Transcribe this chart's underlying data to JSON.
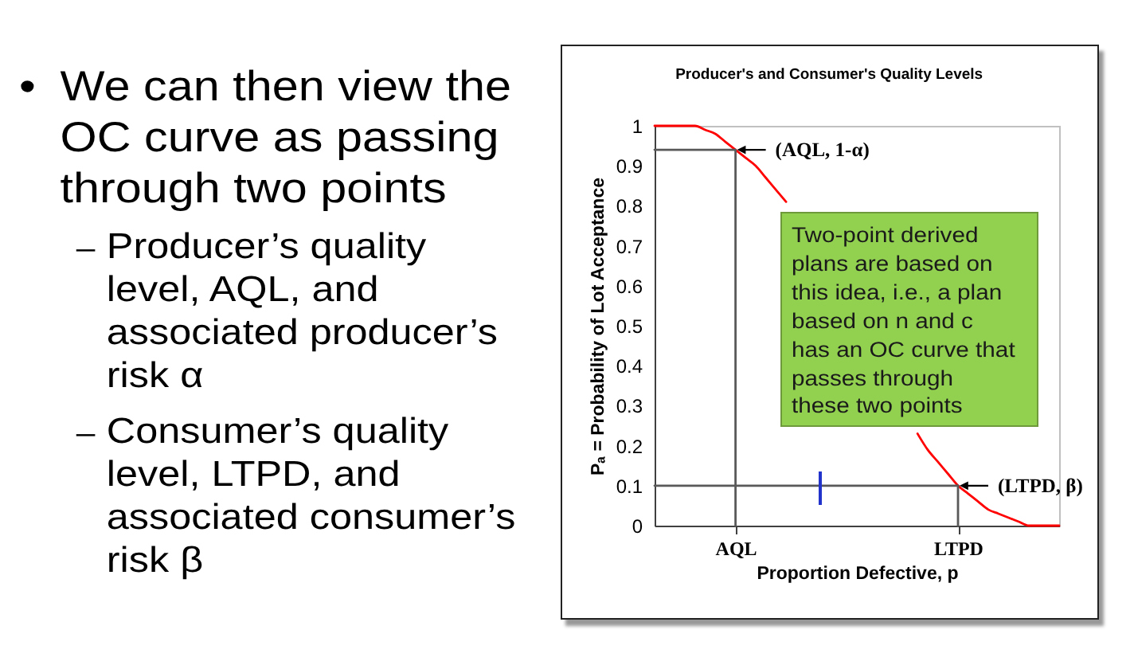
{
  "chart_data": {
    "type": "line",
    "title": "Producer's and Consumer's Quality Levels",
    "xlabel": "Proportion Defective, p",
    "ylabel": "Pₐ = Probability of Lot Acceptance",
    "categories": [
      null,
      null,
      null,
      null,
      null,
      null,
      null,
      null,
      "AQL",
      null,
      null,
      null,
      null,
      null,
      null,
      null,
      null,
      null,
      null,
      null,
      null,
      null,
      null,
      null,
      null,
      null,
      null,
      null,
      null,
      null,
      "LTPD",
      null,
      null,
      null,
      null,
      null,
      null,
      null,
      null,
      null,
      null
    ],
    "ylim": [
      0,
      1
    ],
    "yticks": [
      0,
      0.1,
      0.2,
      0.3,
      0.4,
      0.5,
      0.6,
      0.7,
      0.8,
      0.9,
      1
    ],
    "series": [
      {
        "color": "#ff0000",
        "values": [
          1,
          1,
          1,
          1,
          1,
          0.99,
          0.98,
          0.96,
          0.94,
          0.92,
          0.9,
          0.87,
          0.84,
          0.81,
          null,
          null,
          null,
          null,
          null,
          null,
          null,
          null,
          null,
          null,
          null,
          null,
          0.23,
          0.19,
          0.16,
          0.13,
          0.1,
          0.08,
          0.06,
          0.04,
          0.03,
          0.02,
          0.01,
          0,
          0,
          0,
          0
        ]
      },
      {
        "color": "#595959",
        "values": [
          0.94,
          0.94,
          0.94,
          0.94,
          0.94,
          0.94,
          0.94,
          0.94,
          0.94,
          null,
          null,
          null,
          null,
          null,
          null,
          null,
          null,
          null,
          null,
          null,
          null,
          null,
          null,
          null,
          null,
          null,
          null,
          null,
          null,
          null,
          null,
          null,
          null,
          null,
          null,
          null,
          null,
          null,
          null,
          null,
          null
        ]
      },
      {
        "color": "#595959",
        "x": [
          "AQL",
          "AQL"
        ],
        "values": [
          0.94,
          0
        ]
      },
      {
        "color": "#595959",
        "values": [
          0.1,
          0.1,
          0.1,
          0.1,
          0.1,
          0.1,
          0.1,
          0.1,
          0.1,
          0.1,
          0.1,
          0.1,
          0.1,
          0.1,
          0.1,
          0.1,
          0.1,
          0.1,
          0.1,
          0.1,
          0.1,
          0.1,
          0.1,
          0.1,
          0.1,
          0.1,
          0.1,
          0.1,
          0.1,
          0.1,
          0.1,
          null,
          null,
          null,
          null,
          null,
          null,
          null,
          null,
          null,
          null
        ]
      },
      {
        "color": "#595959",
        "x": [
          "LTPD",
          "LTPD"
        ],
        "values": [
          0.1,
          0
        ]
      }
    ],
    "annotations": [
      {
        "text": "(AQL, 1-α)",
        "x": "AQL",
        "y": 0.94
      },
      {
        "text": "(LTPD, β)",
        "x": "LTPD",
        "y": 0.1
      },
      "Two-point derived plans are based on this idea, i.e., a plan based on n and c has an OC curve that passes through these two points",
      "• We can then view the OC curve as passing through two points",
      "– Producer’s quality level, AQL, and associated producer’s risk α",
      "– Consumer’s quality level, LTPD, and associated consumer’s risk β"
    ]
  }
}
